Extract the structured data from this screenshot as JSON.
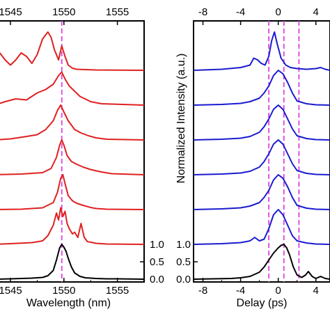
{
  "chart_data": [
    {
      "type": "line",
      "panel": "left",
      "title": "",
      "xlabel": "Wavelength (nm)",
      "ylabel": "",
      "x_ticks_bottom": [
        "1545",
        "1550",
        "1555"
      ],
      "x_ticks_top": [
        "1545",
        "1550",
        "1555"
      ],
      "x_tick_values": [
        1545,
        1550,
        1555
      ],
      "xlim": [
        1543.5,
        1557.5
      ],
      "y_ticks_right": [
        "1.0",
        "0.5",
        "0.0"
      ],
      "y_tick_values": [
        1.0,
        0.5,
        0.0
      ],
      "marker_lines": [
        1549.8
      ],
      "marker_color": "#e040e0",
      "stack_offset": 1.0,
      "series": [
        {
          "color": "#000000",
          "offset": 0,
          "x": [
            1543.5,
            1545,
            1546,
            1547,
            1548,
            1548.5,
            1549,
            1549.3,
            1549.6,
            1549.8,
            1550.0,
            1550.2,
            1550.4,
            1550.7,
            1551,
            1551.5,
            1552,
            1553,
            1554,
            1555,
            1557.5
          ],
          "y": [
            0,
            0.01,
            0.02,
            0.03,
            0.05,
            0.1,
            0.25,
            0.55,
            0.9,
            1.0,
            0.92,
            0.8,
            0.6,
            0.35,
            0.18,
            0.08,
            0.04,
            0.02,
            0.01,
            0.01,
            0
          ]
        },
        {
          "color": "#e02020",
          "offset": 1,
          "x": [
            1543.5,
            1545,
            1547,
            1548,
            1548.5,
            1549,
            1549.3,
            1549.5,
            1549.7,
            1549.9,
            1550.1,
            1550.3,
            1550.5,
            1550.8,
            1551,
            1551.3,
            1551.6,
            1551.9,
            1552.2,
            1553,
            1554,
            1557.5
          ],
          "y": [
            0,
            0.02,
            0.05,
            0.1,
            0.25,
            0.55,
            0.9,
            0.7,
            1.05,
            0.8,
            0.95,
            0.6,
            0.45,
            0.3,
            0.35,
            0.2,
            0.6,
            0.2,
            0.08,
            0.03,
            0.01,
            0
          ]
        },
        {
          "color": "#e02020",
          "offset": 2,
          "x": [
            1543.5,
            1546,
            1548,
            1549,
            1549.4,
            1549.7,
            1549.9,
            1550.1,
            1550.4,
            1550.8,
            1551.2,
            1551.8,
            1552.5,
            1553,
            1554,
            1557.5
          ],
          "y": [
            0,
            0.01,
            0.05,
            0.2,
            0.5,
            0.9,
            1.0,
            0.75,
            0.4,
            0.25,
            0.18,
            0.12,
            0.06,
            0.03,
            0.01,
            0
          ]
        },
        {
          "color": "#e02020",
          "offset": 3,
          "x": [
            1543.5,
            1546,
            1548,
            1548.8,
            1549.3,
            1549.6,
            1549.8,
            1550.0,
            1550.3,
            1550.7,
            1551.2,
            1551.8,
            1552.5,
            1553.5,
            1554.5,
            1557.5
          ],
          "y": [
            0,
            0.02,
            0.06,
            0.18,
            0.5,
            0.85,
            1.0,
            0.85,
            0.55,
            0.38,
            0.3,
            0.22,
            0.15,
            0.08,
            0.03,
            0
          ]
        },
        {
          "color": "#e02020",
          "offset": 4,
          "x": [
            1543.5,
            1545,
            1546.5,
            1547.5,
            1548.3,
            1549,
            1549.4,
            1549.7,
            1550.0,
            1550.4,
            1551,
            1551.6,
            1552.3,
            1553,
            1554,
            1557.5
          ],
          "y": [
            0,
            0.03,
            0.1,
            0.15,
            0.3,
            0.55,
            0.85,
            1.0,
            0.8,
            0.55,
            0.3,
            0.2,
            0.12,
            0.06,
            0.02,
            0
          ]
        },
        {
          "color": "#e02020",
          "offset": 5,
          "x": [
            1543.5,
            1544.5,
            1545.5,
            1546.5,
            1547.5,
            1548.3,
            1549,
            1549.5,
            1549.8,
            1550.1,
            1550.5,
            1551,
            1551.5,
            1552.5,
            1553.5,
            1557.5
          ],
          "y": [
            0,
            0.1,
            0.18,
            0.15,
            0.35,
            0.45,
            0.6,
            0.85,
            0.95,
            0.75,
            0.55,
            0.4,
            0.25,
            0.1,
            0.04,
            0
          ]
        },
        {
          "color": "#e02020",
          "offset": 6,
          "x": [
            1543.5,
            1544,
            1544.5,
            1545,
            1545.5,
            1546,
            1546.5,
            1547,
            1547.5,
            1548,
            1548.5,
            1548.8,
            1549.1,
            1549.5,
            1549.8,
            1550.1,
            1550.4,
            1550.8,
            1551.2,
            1552,
            1553,
            1557.5
          ],
          "y": [
            0.3,
            0.5,
            0.3,
            0.15,
            0.3,
            0.5,
            0.4,
            0.2,
            0.45,
            0.9,
            1.1,
            0.95,
            0.6,
            0.3,
            0.7,
            0.4,
            0.15,
            0.06,
            0.03,
            0.02,
            0.01,
            0
          ]
        }
      ]
    },
    {
      "type": "line",
      "panel": "right",
      "title": "",
      "xlabel": "Delay (ps)",
      "ylabel": "Normalized Intensity (a.u.)",
      "x_ticks_bottom": [
        "-8",
        "-4",
        "0",
        "4"
      ],
      "x_ticks_top": [
        "-8",
        "-4",
        "0",
        "4"
      ],
      "x_tick_values": [
        -8,
        -4,
        0,
        4
      ],
      "xlim": [
        -9.0,
        5.5
      ],
      "y_ticks_left": [
        "1.0",
        "0.5",
        "0.0"
      ],
      "y_tick_values": [
        1.0,
        0.5,
        0.0
      ],
      "marker_lines": [
        -1.0,
        0.6,
        2.2
      ],
      "marker_color": "#e040e0",
      "stack_offset": 1.0,
      "series": [
        {
          "color": "#000000",
          "offset": 0,
          "x": [
            -9,
            -7,
            -5,
            -4,
            -3,
            -2,
            -1.5,
            -1,
            -0.5,
            0,
            0.3,
            0.6,
            0.9,
            1.2,
            1.6,
            2,
            2.5,
            2.9,
            3.2,
            3.6,
            4,
            4.5,
            5,
            5.5
          ],
          "y": [
            0,
            0.01,
            0.02,
            0.04,
            0.08,
            0.2,
            0.35,
            0.55,
            0.75,
            0.9,
            0.97,
            1.0,
            0.9,
            0.7,
            0.35,
            0.12,
            0.05,
            0.12,
            0.22,
            0.08,
            0.02,
            0.08,
            0.02,
            0
          ]
        },
        {
          "color": "#1a1ad0",
          "offset": 1,
          "x": [
            -9,
            -6,
            -4,
            -3,
            -2.5,
            -2,
            -1.5,
            -1,
            -0.5,
            0,
            0.5,
            1,
            1.5,
            2,
            3,
            4,
            5.5
          ],
          "y": [
            0,
            0.02,
            0.05,
            0.1,
            0.2,
            0.1,
            0.15,
            0.45,
            0.85,
            1.0,
            0.85,
            0.55,
            0.25,
            0.1,
            0.04,
            0.01,
            0
          ]
        },
        {
          "color": "#1a1ad0",
          "offset": 2,
          "x": [
            -9,
            -6,
            -4,
            -3,
            -2,
            -1.5,
            -1,
            -0.5,
            0,
            0.5,
            1,
            1.5,
            2,
            3,
            4,
            5.5
          ],
          "y": [
            0,
            0.02,
            0.05,
            0.1,
            0.2,
            0.35,
            0.55,
            0.85,
            1.0,
            0.9,
            0.65,
            0.35,
            0.12,
            0.04,
            0.01,
            0
          ]
        },
        {
          "color": "#1a1ad0",
          "offset": 3,
          "x": [
            -9,
            -6,
            -4,
            -3,
            -2,
            -1.5,
            -1,
            -0.5,
            0,
            0.5,
            1,
            1.5,
            2,
            3,
            4,
            5.5
          ],
          "y": [
            0,
            0.02,
            0.05,
            0.1,
            0.22,
            0.38,
            0.6,
            0.88,
            1.0,
            0.88,
            0.6,
            0.32,
            0.12,
            0.04,
            0.01,
            0
          ]
        },
        {
          "color": "#1a1ad0",
          "offset": 4,
          "x": [
            -9,
            -6,
            -4,
            -3,
            -2,
            -1.5,
            -1,
            -0.5,
            0,
            0.5,
            1,
            1.5,
            2,
            3,
            4,
            5.5
          ],
          "y": [
            0,
            0.02,
            0.05,
            0.1,
            0.22,
            0.38,
            0.6,
            0.88,
            1.0,
            0.88,
            0.6,
            0.32,
            0.12,
            0.04,
            0.01,
            0
          ]
        },
        {
          "color": "#1a1ad0",
          "offset": 5,
          "x": [
            -9,
            -6,
            -4,
            -3,
            -2,
            -1.5,
            -1,
            -0.5,
            0,
            0.5,
            1,
            1.5,
            2,
            3,
            4,
            5.5
          ],
          "y": [
            0,
            0.02,
            0.05,
            0.1,
            0.2,
            0.35,
            0.55,
            0.85,
            1.0,
            0.9,
            0.65,
            0.35,
            0.12,
            0.04,
            0.01,
            0
          ]
        },
        {
          "color": "#1a1ad0",
          "offset": 6,
          "x": [
            -9,
            -6,
            -4,
            -3,
            -2.6,
            -2.2,
            -1.8,
            -1.4,
            -1,
            -0.7,
            -0.4,
            -0.1,
            0.3,
            0.8,
            1.3,
            2,
            3,
            4,
            4.5,
            5,
            5.5
          ],
          "y": [
            0,
            0.03,
            0.08,
            0.15,
            0.35,
            0.3,
            0.2,
            0.15,
            0.4,
            0.85,
            1.1,
            0.75,
            0.35,
            0.15,
            0.08,
            0.05,
            0.03,
            0.05,
            0.08,
            0.03,
            0
          ]
        }
      ]
    }
  ]
}
